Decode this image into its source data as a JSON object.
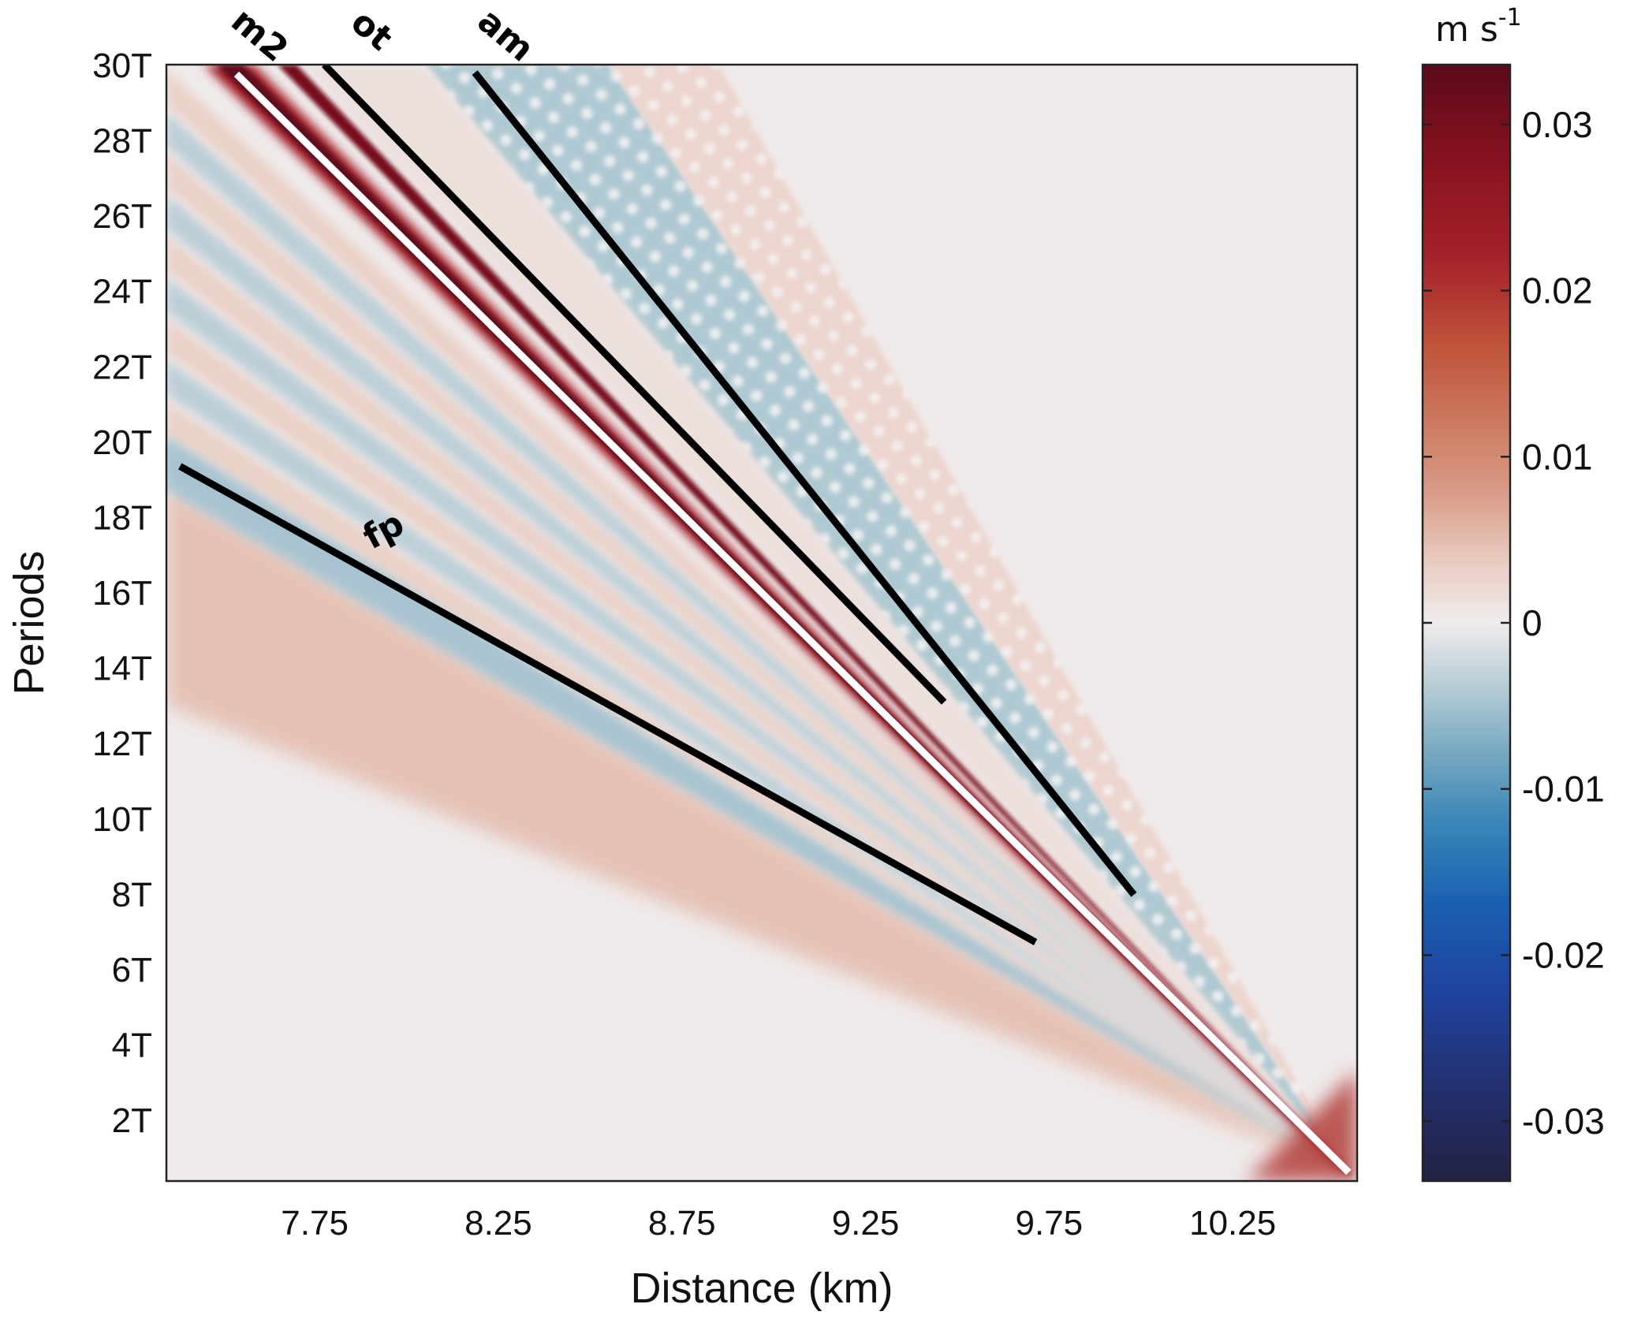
{
  "chart_data": {
    "type": "heatmap",
    "title": "",
    "xlabel": "Distance (km)",
    "ylabel": "Periods",
    "xlim": [
      7.346,
      10.589
    ],
    "ylim": [
      0.37,
      30
    ],
    "x_ticks": [
      {
        "value": 7.75,
        "label": "7.75"
      },
      {
        "value": 8.25,
        "label": "8.25"
      },
      {
        "value": 8.75,
        "label": "8.75"
      },
      {
        "value": 9.25,
        "label": "9.25"
      },
      {
        "value": 9.75,
        "label": "9.75"
      },
      {
        "value": 10.25,
        "label": "10.25"
      }
    ],
    "y_ticks": [
      {
        "value": 2,
        "label": "2T"
      },
      {
        "value": 4,
        "label": "4T"
      },
      {
        "value": 6,
        "label": "6T"
      },
      {
        "value": 8,
        "label": "8T"
      },
      {
        "value": 10,
        "label": "10T"
      },
      {
        "value": 12,
        "label": "12T"
      },
      {
        "value": 14,
        "label": "14T"
      },
      {
        "value": 16,
        "label": "16T"
      },
      {
        "value": 18,
        "label": "18T"
      },
      {
        "value": 20,
        "label": "20T"
      },
      {
        "value": 22,
        "label": "22T"
      },
      {
        "value": 24,
        "label": "24T"
      },
      {
        "value": 26,
        "label": "26T"
      },
      {
        "value": 28,
        "label": "28T"
      },
      {
        "value": 30,
        "label": "30T"
      }
    ],
    "colorbar": {
      "units_base": "m s",
      "units_exp": "-1",
      "clim": [
        -0.0336,
        0.0336
      ],
      "ticks": [
        {
          "value": 0.03,
          "label": "0.03"
        },
        {
          "value": 0.02,
          "label": "0.02"
        },
        {
          "value": 0.01,
          "label": "0.01"
        },
        {
          "value": 0,
          "label": "0"
        },
        {
          "value": -0.01,
          "label": "-0.01"
        },
        {
          "value": -0.02,
          "label": "-0.02"
        },
        {
          "value": -0.03,
          "label": "-0.03"
        }
      ],
      "colormap": "diverging red-blue",
      "color_stops": [
        {
          "value": -0.0336,
          "color": "#222244"
        },
        {
          "value": -0.028,
          "color": "#23306e"
        },
        {
          "value": -0.022,
          "color": "#1f44a0"
        },
        {
          "value": -0.017,
          "color": "#1a5fb2"
        },
        {
          "value": -0.012,
          "color": "#3a86b8"
        },
        {
          "value": -0.008,
          "color": "#74a7c0"
        },
        {
          "value": -0.004,
          "color": "#b4cbd4"
        },
        {
          "value": 0.0,
          "color": "#efecec"
        },
        {
          "value": 0.004,
          "color": "#e8c8bc"
        },
        {
          "value": 0.008,
          "color": "#d99a86"
        },
        {
          "value": 0.012,
          "color": "#cc7a60"
        },
        {
          "value": 0.017,
          "color": "#be5038"
        },
        {
          "value": 0.022,
          "color": "#a5212a"
        },
        {
          "value": 0.028,
          "color": "#87121f"
        },
        {
          "value": 0.0336,
          "color": "#5a0a1a"
        }
      ]
    },
    "background_value": 0.0005,
    "annotation_lines": [
      {
        "name": "m2",
        "color": "#ffffff",
        "x": [
          7.537,
          10.566
        ],
        "y": [
          29.75,
          0.6
        ],
        "label_pos": [
          7.58,
          30.55
        ],
        "label_angle": 40
      },
      {
        "name": "ot",
        "color": "#000000",
        "x": [
          7.776,
          9.464
        ],
        "y": [
          30.0,
          13.08
        ],
        "label_pos": [
          7.885,
          30.68
        ],
        "label_angle": 40
      },
      {
        "name": "am",
        "color": "#000000",
        "x": [
          8.186,
          9.981
        ],
        "y": [
          29.79,
          7.97
        ],
        "label_pos": [
          8.25,
          30.55
        ],
        "label_angle": 40
      },
      {
        "name": "fp",
        "color": "#000000",
        "x": [
          7.383,
          9.713
        ],
        "y": [
          19.34,
          6.71
        ],
        "label_pos": [
          7.952,
          17.37
        ],
        "label_angle": -28
      }
    ],
    "features": {
      "apex": [
        10.566,
        0.6
      ],
      "primary_band": {
        "value": 0.033,
        "from": [
          7.49,
          30
        ],
        "note": "dark red band along m2"
      },
      "secondary_band": {
        "value": 0.03,
        "from": [
          7.67,
          30
        ]
      },
      "dotted_blue_band": {
        "value": -0.008,
        "from_x_at_top": [
          8.05,
          8.55
        ]
      },
      "dotted_red_band": {
        "value": 0.005,
        "from_x_at_top": [
          8.55,
          8.85
        ]
      },
      "fan_stripes_left_edge_y": [
        19.5,
        20.6,
        21.7,
        22.8,
        23.9,
        25.0,
        26.1,
        27.2,
        28.3,
        29.4
      ],
      "lower_red_wedge": {
        "value": 0.005,
        "left_edge_y": [
          13,
          18.8
        ]
      }
    }
  }
}
